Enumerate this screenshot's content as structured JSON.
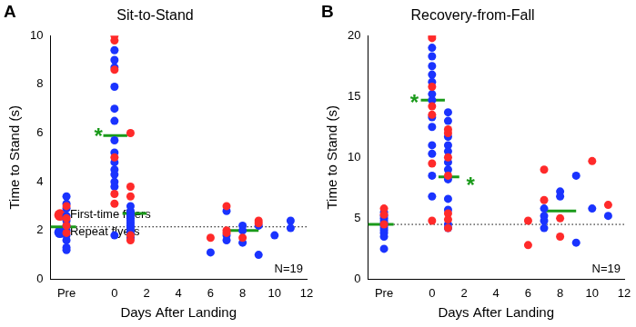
{
  "chart_data": [
    {
      "type": "scatter",
      "panel": "A",
      "title": "Sit-to-Stand",
      "x_label": "Days After Landing",
      "y_label": "Time to Stand (s)",
      "xlim": [
        -4,
        12
      ],
      "xticks": [
        {
          "value": -3,
          "label": "Pre"
        },
        0,
        2,
        4,
        6,
        8,
        10,
        12
      ],
      "ylim": [
        0,
        10
      ],
      "yticks": [
        0,
        2,
        4,
        6,
        8,
        10
      ],
      "grid": false,
      "legend": "upper right",
      "series": [
        {
          "name": "First-time flyers",
          "color": "#ff2a2a",
          "marker": "circle",
          "x": [
            -3,
            -3,
            -3,
            -3,
            0,
            0,
            0,
            0,
            0,
            0,
            1,
            1,
            1,
            1,
            1,
            6,
            7,
            7,
            7,
            8,
            9,
            9
          ],
          "values": [
            3.0,
            2.5,
            2.2,
            1.9,
            10.0,
            9.8,
            8.6,
            5.0,
            3.5,
            3.1,
            6.0,
            3.8,
            3.4,
            1.8,
            1.6,
            1.7,
            3.0,
            2.0,
            1.9,
            1.7,
            2.4,
            2.3
          ]
        },
        {
          "name": "Repeat flyers",
          "color": "#1a33ff",
          "marker": "circle",
          "x": [
            -3,
            -3,
            -3,
            -3,
            -3,
            -3,
            -3,
            -3,
            -3,
            -3,
            -3,
            0,
            0,
            0,
            0,
            0,
            0,
            0,
            0,
            0,
            0,
            0,
            0,
            0,
            0,
            1,
            1,
            1,
            1,
            1,
            1,
            1,
            1,
            1,
            1,
            1,
            1,
            6,
            7,
            7,
            7,
            8,
            8,
            8,
            9,
            9,
            10,
            11,
            11
          ],
          "values": [
            3.4,
            3.1,
            2.9,
            2.6,
            2.4,
            2.2,
            2.0,
            1.8,
            1.6,
            1.3,
            1.2,
            9.4,
            9.0,
            8.7,
            7.9,
            7.0,
            6.5,
            5.7,
            5.2,
            4.8,
            4.5,
            4.3,
            4.0,
            3.8,
            1.8,
            3.0,
            2.8,
            2.7,
            2.6,
            2.5,
            2.4,
            2.3,
            2.2,
            2.1,
            2.0,
            1.9,
            1.7,
            1.1,
            2.8,
            1.8,
            1.6,
            2.2,
            2.0,
            1.5,
            2.2,
            1.0,
            1.8,
            2.4,
            2.1
          ]
        }
      ],
      "medians": {
        "color": "#1a9a1a",
        "segments": [
          {
            "x": [
              -4,
              -2.4
            ],
            "y": 2.15
          },
          {
            "x": [
              -0.7,
              0.8
            ],
            "y": 5.9
          },
          {
            "x": [
              0.5,
              2.0
            ],
            "y": 2.7
          },
          {
            "x": [
              7,
              9
            ],
            "y": 2.0
          }
        ]
      },
      "reference_line": 2.15,
      "annotations": [
        {
          "text": "*",
          "x": -1.0,
          "y": 6.0,
          "color": "#1a9a1a"
        }
      ],
      "note": "N=19"
    },
    {
      "type": "scatter",
      "panel": "B",
      "title": "Recovery-from-Fall",
      "x_label": "Days After Landing",
      "y_label": "Time to Stand (s)",
      "xlim": [
        -4,
        12
      ],
      "xticks": [
        {
          "value": -3,
          "label": "Pre"
        },
        0,
        2,
        4,
        6,
        8,
        10,
        12
      ],
      "ylim": [
        0,
        20
      ],
      "yticks": [
        0,
        5,
        10,
        15,
        20
      ],
      "grid": false,
      "series": [
        {
          "name": "First-time flyers",
          "color": "#ff2a2a",
          "marker": "circle",
          "x": [
            -3,
            -3,
            -3,
            0,
            0,
            0,
            0,
            0,
            0,
            0,
            1,
            1,
            1,
            1,
            1,
            1,
            1,
            6,
            6,
            7,
            7,
            8,
            8,
            10,
            11
          ],
          "values": [
            5.8,
            5.3,
            4.5,
            20.0,
            19.8,
            15.8,
            14.2,
            13.5,
            9.5,
            4.8,
            12.3,
            12.0,
            10.0,
            8.5,
            5.4,
            4.9,
            4.2,
            4.8,
            2.8,
            6.5,
            9.0,
            5.0,
            3.5,
            9.7,
            6.1
          ]
        },
        {
          "name": "Repeat flyers",
          "color": "#1a33ff",
          "marker": "circle",
          "x": [
            -3,
            -3,
            -3,
            -3,
            -3,
            -3,
            -3,
            -3,
            -3,
            -3,
            -3,
            0,
            0,
            0,
            0,
            0,
            0,
            0,
            0,
            0,
            0,
            0,
            0,
            0,
            1,
            1,
            1,
            1,
            1,
            1,
            1,
            1,
            1,
            1,
            1,
            1,
            7,
            7,
            7,
            7,
            8,
            8,
            9,
            9,
            10,
            11
          ],
          "values": [
            5.5,
            5.2,
            5.0,
            4.8,
            4.6,
            4.4,
            4.2,
            4.0,
            3.8,
            3.5,
            2.5,
            19.0,
            18.3,
            17.5,
            16.8,
            16.2,
            15.2,
            14.7,
            13.3,
            12.5,
            11.0,
            10.3,
            8.5,
            6.8,
            13.7,
            13.0,
            11.7,
            11.0,
            10.5,
            9.6,
            9.0,
            8.2,
            6.6,
            5.7,
            4.5,
            4.2,
            5.8,
            5.2,
            4.8,
            4.2,
            7.2,
            6.8,
            8.5,
            3.0,
            5.8,
            5.2
          ]
        }
      ],
      "medians": {
        "color": "#1a9a1a",
        "segments": [
          {
            "x": [
              -4,
              -2.4
            ],
            "y": 4.5
          },
          {
            "x": [
              -0.7,
              0.8
            ],
            "y": 14.7
          },
          {
            "x": [
              0.4,
              1.7
            ],
            "y": 8.4
          },
          {
            "x": [
              7,
              9
            ],
            "y": 5.6
          }
        ]
      },
      "reference_line": 4.5,
      "annotations": [
        {
          "text": "*",
          "x": -1.1,
          "y": 14.8,
          "color": "#1a9a1a"
        },
        {
          "text": "*",
          "x": 2.4,
          "y": 8.0,
          "color": "#1a9a1a"
        }
      ],
      "note": "N=19"
    }
  ]
}
